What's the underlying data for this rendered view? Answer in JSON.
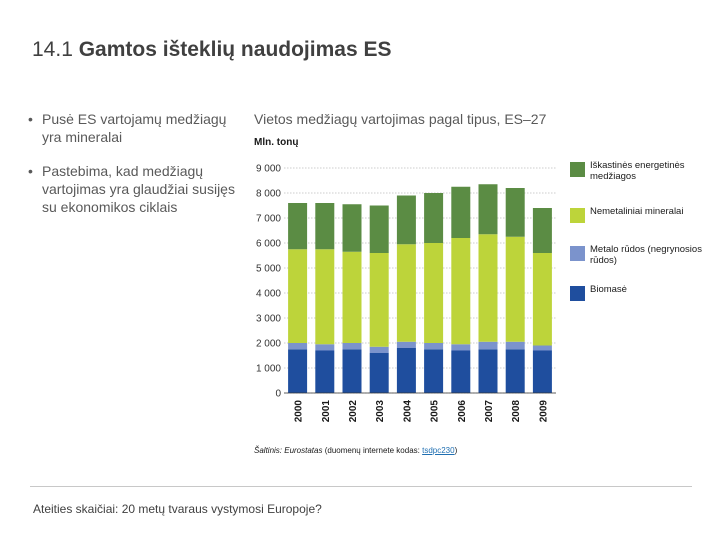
{
  "slide": {
    "number": "14.1",
    "title": "Gamtos išteklių naudojimas ES",
    "bullets": [
      "Pusė ES vartojamų medžiagų yra mineralai",
      "Pastebima, kad medžiagų vartojimas yra glaudžiai susijęs su ekonomikos ciklais"
    ],
    "footer": "Ateities skaičiai: 20 metų tvaraus vystymosi Europoje?"
  },
  "source": {
    "prefix": "Šaltinis: ",
    "agency": "Eurostatas",
    "middle": " (duomenų internete kodas: ",
    "code": "tsdpc230",
    "suffix": ")"
  },
  "chart_data": {
    "type": "bar",
    "stacked": true,
    "title": "Vietos medžiagų vartojimas pagal tipus, ES–27",
    "unit_label": "Mln. tonų",
    "ylim": [
      0,
      9000
    ],
    "yticks": [
      0,
      1000,
      2000,
      3000,
      4000,
      5000,
      6000,
      7000,
      8000,
      9000
    ],
    "ytick_labels": [
      "0",
      "1 000",
      "2 000",
      "3 000",
      "4 000",
      "5 000",
      "6 000",
      "7 000",
      "8 000",
      "9 000"
    ],
    "grid": true,
    "legend_position": "right",
    "categories": [
      "2000",
      "2001",
      "2002",
      "2003",
      "2004",
      "2005",
      "2006",
      "2007",
      "2008",
      "2009"
    ],
    "series": [
      {
        "name": "Biomasė",
        "color": "#1f4e9e",
        "values": [
          1750,
          1700,
          1750,
          1600,
          1800,
          1750,
          1700,
          1750,
          1750,
          1700
        ]
      },
      {
        "name": "Metalo rūdos (negrynosios rūdos)",
        "color": "#7b93cc",
        "values": [
          250,
          250,
          250,
          250,
          250,
          250,
          250,
          300,
          300,
          200
        ]
      },
      {
        "name": "Nemetaliniai mineralai",
        "color": "#bdd43a",
        "values": [
          3750,
          3800,
          3650,
          3750,
          3900,
          4000,
          4250,
          4300,
          4200,
          3700
        ]
      },
      {
        "name": "Iškastinės energetinės medžiagos",
        "color": "#5b8c44",
        "values": [
          1850,
          1850,
          1900,
          1900,
          1950,
          2000,
          2050,
          2000,
          1950,
          1800
        ]
      }
    ]
  }
}
